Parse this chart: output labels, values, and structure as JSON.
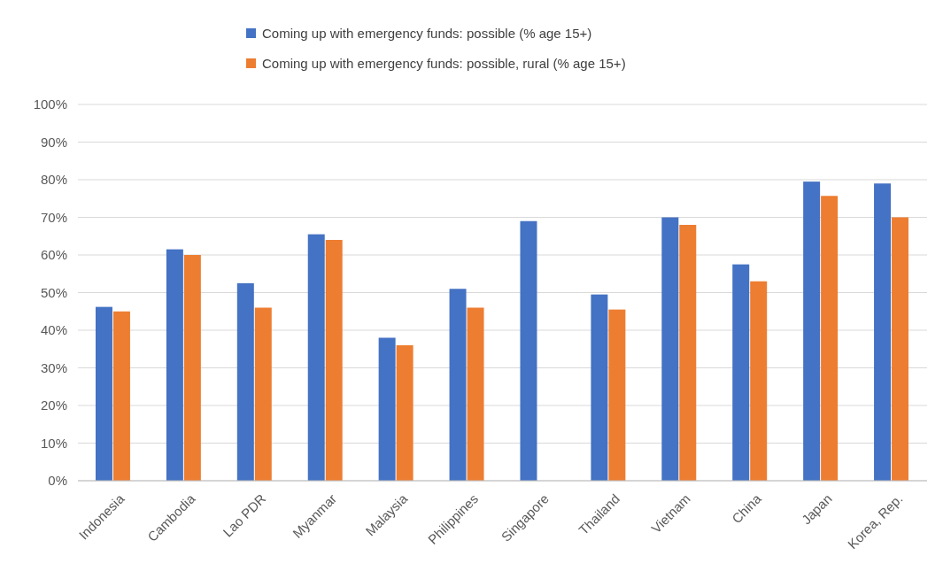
{
  "chart_data": {
    "type": "bar",
    "categories": [
      "Indonesia",
      "Cambodia",
      "Lao PDR",
      "Myanmar",
      "Malaysia",
      "Philippines",
      "Singapore",
      "Thailand",
      "Vietnam",
      "China",
      "Japan",
      "Korea, Rep."
    ],
    "series": [
      {
        "name": "Coming up with emergency funds: possible (% age 15+)",
        "color": "#4472c4",
        "values": [
          46.2,
          61.5,
          52.5,
          65.5,
          38,
          51,
          69,
          49.5,
          70,
          57.5,
          79.5,
          79
        ]
      },
      {
        "name": "Coming up with emergency funds: possible, rural (% age 15+)",
        "color": "#ed7d31",
        "values": [
          45,
          60,
          46,
          64,
          36,
          46,
          null,
          45.5,
          68,
          53,
          75.7,
          70
        ]
      }
    ],
    "ylim": [
      0,
      100
    ],
    "yticks": [
      {
        "value": 0,
        "label": "0%"
      },
      {
        "value": 10,
        "label": "10%"
      },
      {
        "value": 20,
        "label": "20%"
      },
      {
        "value": 30,
        "label": "30%"
      },
      {
        "value": 40,
        "label": "40%"
      },
      {
        "value": 50,
        "label": "50%"
      },
      {
        "value": 60,
        "label": "60%"
      },
      {
        "value": 70,
        "label": "70%"
      },
      {
        "value": 80,
        "label": "80%"
      },
      {
        "value": 90,
        "label": "90%"
      },
      {
        "value": 100,
        "label": "100%"
      }
    ],
    "grid": "y",
    "legend": "top"
  }
}
